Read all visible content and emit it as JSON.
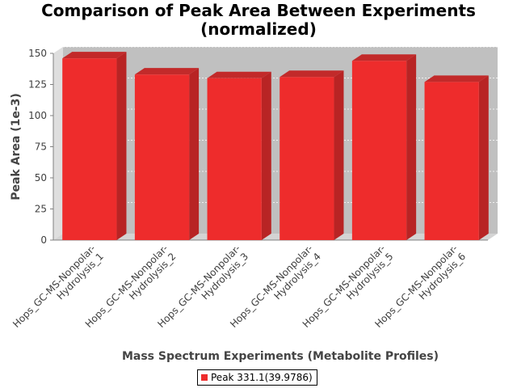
{
  "chart_data": {
    "type": "bar",
    "title_lines": [
      "Comparison of Peak Area Between Experiments",
      "(normalized)"
    ],
    "xlabel": "Mass Spectrum Experiments (Metabolite Profiles)",
    "ylabel": "Peak Area (1e-3)",
    "ylim": [
      0,
      150
    ],
    "yticks": [
      0,
      25,
      50,
      75,
      100,
      125,
      150
    ],
    "categories": [
      [
        "Hops_GC-MS-Nonpolar-",
        "Hydrolysis_1"
      ],
      [
        "Hops_GC-MS-Nonpolar-",
        "Hydrolysis_2"
      ],
      [
        "Hops_GC-MS-Nonpolar-",
        "Hydrolysis_3"
      ],
      [
        "Hops_GC-MS-Nonpolar-",
        "Hydrolysis_4"
      ],
      [
        "Hops_GC-MS-Nonpolar-",
        "Hydrolysis_5"
      ],
      [
        "Hops_GC-MS-Nonpolar-",
        "Hydrolysis_6"
      ]
    ],
    "series": [
      {
        "name": "Peak 331.1(39.9786)",
        "values": [
          146,
          133,
          130,
          131,
          144,
          127
        ]
      }
    ],
    "grid": true,
    "style": "3d-bar",
    "legend_position": "bottom",
    "colors": {
      "bar": "#ee2c2c",
      "plot_background": "#c0c0c0"
    }
  }
}
